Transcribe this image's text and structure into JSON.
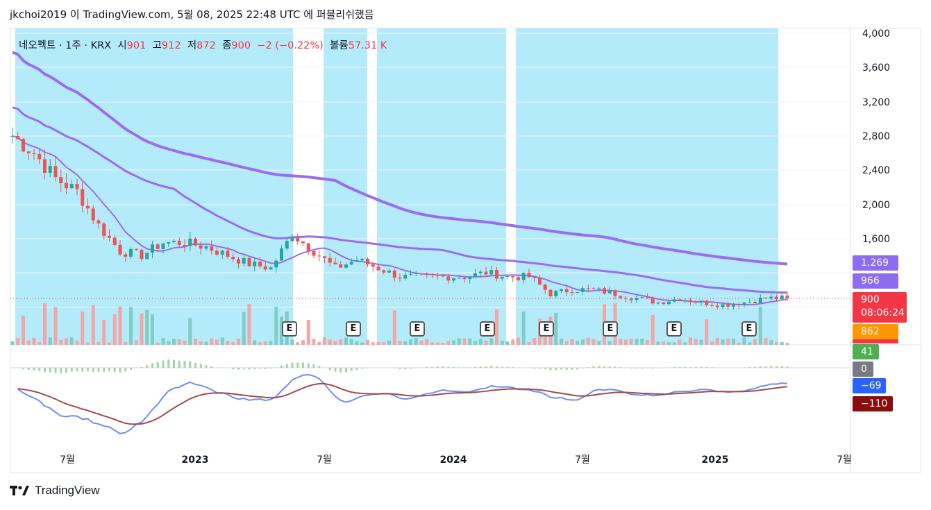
{
  "header": "jkchoi2019 이 TradingView.com, 5월 08, 2025 22:48 UTC 에 퍼블리쉬했음",
  "legend": {
    "symbol": "네오펙트 · 1주 · KRX",
    "open_label": "시",
    "open": "901",
    "high_label": "고",
    "high": "912",
    "low_label": "저",
    "low": "872",
    "close_label": "종",
    "close": "900",
    "change": "−2 (−0.22%)",
    "volume_label": "볼륨",
    "volume": "57.31 K"
  },
  "price_axis": [
    "4,000",
    "3,600",
    "3,200",
    "2,800",
    "2,400",
    "2,000",
    "1,600"
  ],
  "time_axis": [
    {
      "label": "7월",
      "bold": false
    },
    {
      "label": "2023",
      "bold": true
    },
    {
      "label": "7월",
      "bold": false
    },
    {
      "label": "2024",
      "bold": true
    },
    {
      "label": "7월",
      "bold": false
    },
    {
      "label": "2025",
      "bold": true
    },
    {
      "label": "7월",
      "bold": false
    }
  ],
  "price_tags": {
    "ma_long": {
      "text": "1,269",
      "color": "#8c6cf0"
    },
    "ma_mid": {
      "text": "966",
      "color": "#8c6cf0"
    },
    "last": {
      "text": "900",
      "color": "#f23645"
    },
    "countdown": {
      "text": "08:06:24",
      "color": "#f23645"
    },
    "low_tag": {
      "text": "862",
      "color": "#ff9800"
    }
  },
  "macd_tags": {
    "hist": {
      "text": "41",
      "color": "#4caf50"
    },
    "zero": {
      "text": "0",
      "color": "#787b86"
    },
    "macd": {
      "text": "−69",
      "color": "#2962ff"
    },
    "signal": {
      "text": "−110",
      "color": "#880e0e"
    }
  },
  "earnings_label": "E",
  "brand": "TradingView",
  "colors": {
    "up": "#26a69a",
    "down": "#ef5350",
    "band": "#b3ebfb",
    "ma": "#9b6bf2",
    "macd": "#6b8ef2",
    "signal": "#a5474a"
  },
  "chart_data": {
    "type": "candlestick",
    "timeframe": "1W",
    "title": "네오펙트 · 1주 · KRX",
    "price_ylim": [
      700,
      4000
    ],
    "last": {
      "open": 901,
      "high": 912,
      "low": 872,
      "close": 900,
      "volume": "57.31 K"
    },
    "price_path": [
      {
        "x": "2022-05",
        "close": 2800
      },
      {
        "x": "2022-06",
        "close": 2600
      },
      {
        "x": "2022-07",
        "close": 2300
      },
      {
        "x": "2022-08",
        "close": 2150
      },
      {
        "x": "2022-09",
        "close": 1750
      },
      {
        "x": "2022-10",
        "close": 1450
      },
      {
        "x": "2022-11",
        "close": 1400
      },
      {
        "x": "2022-12",
        "close": 1550
      },
      {
        "x": "2023-01",
        "close": 1550
      },
      {
        "x": "2023-02",
        "close": 1500
      },
      {
        "x": "2023-03",
        "close": 1400
      },
      {
        "x": "2023-04",
        "close": 1300
      },
      {
        "x": "2023-05",
        "close": 1250
      },
      {
        "x": "2023-06",
        "close": 1650
      },
      {
        "x": "2023-07",
        "close": 1450
      },
      {
        "x": "2023-08",
        "close": 1250
      },
      {
        "x": "2023-09",
        "close": 1350
      },
      {
        "x": "2023-10",
        "close": 1250
      },
      {
        "x": "2023-11",
        "close": 1150
      },
      {
        "x": "2023-12",
        "close": 1150
      },
      {
        "x": "2024-01",
        "close": 1150
      },
      {
        "x": "2024-02",
        "close": 1150
      },
      {
        "x": "2024-03",
        "close": 1200
      },
      {
        "x": "2024-04",
        "close": 1150
      },
      {
        "x": "2024-05",
        "close": 1150
      },
      {
        "x": "2024-06",
        "close": 950
      },
      {
        "x": "2024-07",
        "close": 1000
      },
      {
        "x": "2024-08",
        "close": 1000
      },
      {
        "x": "2024-09",
        "close": 950
      },
      {
        "x": "2024-10",
        "close": 900
      },
      {
        "x": "2024-11",
        "close": 850
      },
      {
        "x": "2024-12",
        "close": 900
      },
      {
        "x": "2025-01",
        "close": 850
      },
      {
        "x": "2025-02",
        "close": 820
      },
      {
        "x": "2025-03",
        "close": 850
      },
      {
        "x": "2025-04",
        "close": 900
      },
      {
        "x": "2025-05",
        "close": 900
      }
    ],
    "indicators": [
      {
        "name": "ma_long",
        "last": 1269
      },
      {
        "name": "ma_mid",
        "last": 966
      }
    ],
    "macd": {
      "histogram": 41,
      "macd": -69,
      "signal": -110
    }
  }
}
